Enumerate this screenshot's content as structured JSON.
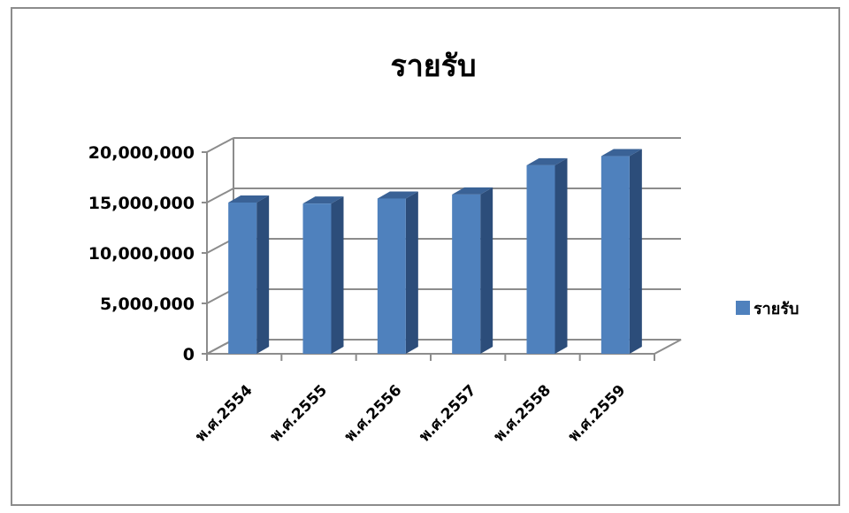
{
  "chart_data": {
    "type": "bar",
    "title": "รายรับ",
    "categories": [
      "พ.ศ.2554",
      "พ.ศ.2555",
      "พ.ศ.2556",
      "พ.ศ.2557",
      "พ.ศ.2558",
      "พ.ศ.2559"
    ],
    "series": [
      {
        "name": "รายรับ",
        "values": [
          15000000,
          14900000,
          15400000,
          15800000,
          18700000,
          19600000
        ],
        "color": "#4f81bd"
      }
    ],
    "ylim": [
      0,
      20000000
    ],
    "yticks": [
      "0",
      "5,000,000",
      "10,000,000",
      "15,000,000",
      "20,000,000"
    ],
    "xlabel": "",
    "ylabel": "",
    "grid": true,
    "style": "3d-column",
    "legend_position": "right"
  }
}
